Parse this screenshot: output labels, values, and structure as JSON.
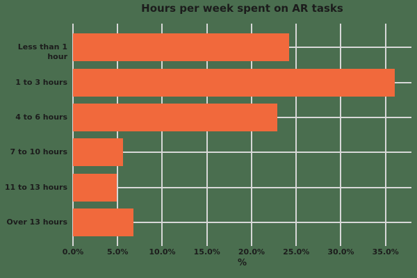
{
  "chart_data": {
    "type": "bar",
    "orientation": "horizontal",
    "title": "Hours per week spent on AR tasks",
    "categories": [
      "Less than 1 hour",
      "1 to 3 hours",
      "4 to 6 hours",
      "7 to 10 hours",
      "11 to 13 hours",
      "Over 13 hours"
    ],
    "values": [
      24.2,
      36.0,
      22.9,
      5.6,
      4.9,
      6.8
    ],
    "xlabel": "%",
    "ylabel": "",
    "xlim": [
      0,
      37.9
    ],
    "xticks": [
      0,
      5,
      10,
      15,
      20,
      25,
      30,
      35
    ],
    "xtick_labels": [
      "0.0%",
      "5.0%",
      "10.0%",
      "15.0%",
      "20.0%",
      "25.0%",
      "30.0%",
      "35.0%"
    ],
    "grid": true,
    "legend": false,
    "colors": {
      "background": "#4a6e4f",
      "bar": "#f1693c",
      "grid": "#d8d8d8",
      "text": "#1c1c1c"
    }
  }
}
